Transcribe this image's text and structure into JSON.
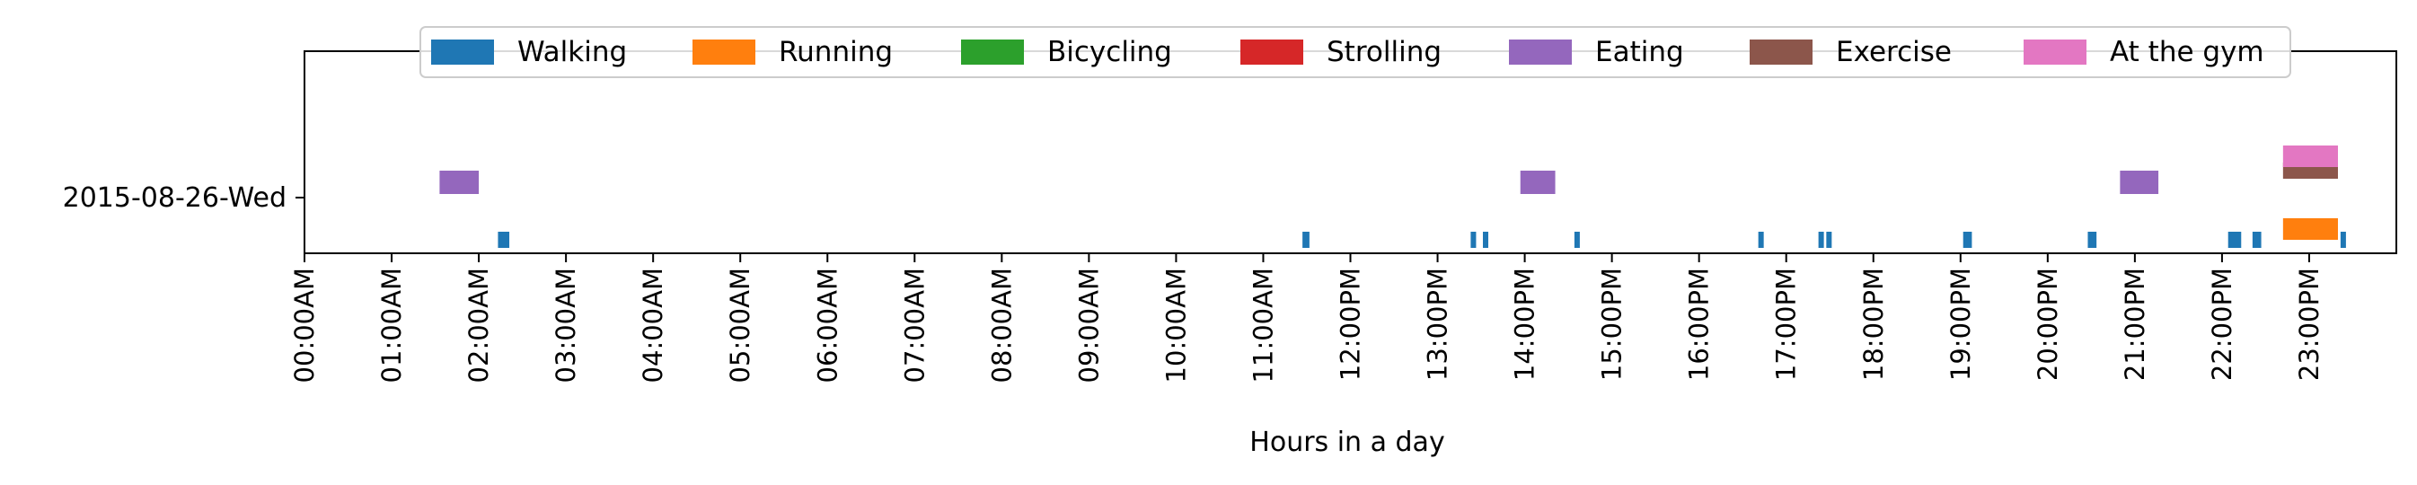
{
  "chart_data": {
    "type": "timeline",
    "xlabel": "Hours in a day",
    "xlim": [
      0,
      24
    ],
    "x_ticks": [
      "00:00AM",
      "01:00AM",
      "02:00AM",
      "03:00AM",
      "04:00AM",
      "05:00AM",
      "06:00AM",
      "07:00AM",
      "08:00AM",
      "09:00AM",
      "10:00AM",
      "11:00AM",
      "12:00PM",
      "13:00PM",
      "14:00PM",
      "15:00PM",
      "16:00PM",
      "17:00PM",
      "18:00PM",
      "19:00PM",
      "20:00PM",
      "21:00PM",
      "22:00PM",
      "23:00PM"
    ],
    "y_categories": [
      "2015-08-26-Wed"
    ],
    "legend_position": "top-center",
    "series": [
      {
        "name": "Walking",
        "color": "#1f77b4",
        "intervals": [
          [
            2.22,
            2.35
          ],
          [
            11.45,
            11.53
          ],
          [
            13.38,
            13.43
          ],
          [
            13.52,
            13.57
          ],
          [
            14.57,
            14.62
          ],
          [
            16.68,
            16.73
          ],
          [
            17.37,
            17.41
          ],
          [
            17.46,
            17.5
          ],
          [
            19.03,
            19.13
          ],
          [
            20.46,
            20.56
          ],
          [
            22.07,
            22.22
          ],
          [
            22.35,
            22.45
          ],
          [
            23.36,
            23.42
          ]
        ]
      },
      {
        "name": "Running",
        "color": "#ff7f0e",
        "intervals": [
          [
            22.7,
            23.33
          ]
        ]
      },
      {
        "name": "Bicycling",
        "color": "#2ca02c",
        "intervals": []
      },
      {
        "name": "Strolling",
        "color": "#d62728",
        "intervals": []
      },
      {
        "name": "Eating",
        "color": "#9467bd",
        "intervals": [
          [
            1.55,
            2.0
          ],
          [
            13.95,
            14.35
          ],
          [
            20.83,
            21.27
          ]
        ]
      },
      {
        "name": "Exercise",
        "color": "#8c564b",
        "intervals": [
          [
            22.7,
            23.33
          ]
        ]
      },
      {
        "name": "At the gym",
        "color": "#e377c2",
        "intervals": [
          [
            22.7,
            23.33
          ]
        ]
      }
    ]
  }
}
